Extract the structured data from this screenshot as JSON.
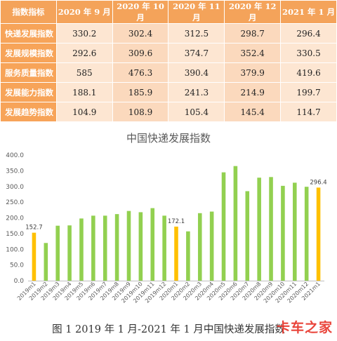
{
  "table": {
    "header": [
      "指数指标",
      "2020 年 9 月",
      "2020 年 10 月",
      "2020 年 11 月",
      "2020 年 12 月",
      "2021 年 1 月"
    ],
    "rows": [
      {
        "label": "快递发展指数",
        "values": [
          "330.2",
          "302.4",
          "312.5",
          "298.7",
          "296.4"
        ]
      },
      {
        "label": "发展规模指数",
        "values": [
          "292.6",
          "309.6",
          "374.7",
          "352.4",
          "330.5"
        ]
      },
      {
        "label": "服务质量指数",
        "values": [
          "585",
          "476.3",
          "390.4",
          "379.9",
          "419.6"
        ]
      },
      {
        "label": "发展能力指数",
        "values": [
          "188.1",
          "185.9",
          "241.3",
          "214.9",
          "199.7"
        ]
      },
      {
        "label": "发展趋势指数",
        "values": [
          "104.9",
          "108.9",
          "105.4",
          "145.4",
          "114.7"
        ]
      }
    ]
  },
  "chart_data": {
    "type": "bar",
    "title": "中国快递发展指数",
    "categories": [
      "2019m1",
      "2019m2",
      "2019m3",
      "2019m4",
      "2019m5",
      "2019m6",
      "2019m7",
      "2019m8",
      "2019m9",
      "2019m10",
      "2019m11",
      "2019m12",
      "2020m1",
      "2020m2",
      "2020m3",
      "2020m4",
      "2020m5",
      "2020m6",
      "2020m7",
      "2020m8",
      "2020m9",
      "2020m10",
      "2020m11",
      "2020m12",
      "2021m1"
    ],
    "values": [
      152.7,
      120,
      175,
      176,
      198,
      207,
      207,
      212,
      222,
      218,
      231,
      207,
      172.1,
      157,
      215,
      220,
      345,
      365,
      285,
      328,
      330,
      302,
      312,
      299,
      296.4
    ],
    "highlight_indices": [
      0,
      12,
      24
    ],
    "data_labels": {
      "0": "152.7",
      "12": "172.1",
      "24": "296.4"
    },
    "ylim": [
      0,
      400
    ],
    "yticks": [
      "0.0",
      "50.0",
      "100.0",
      "150.0",
      "200.0",
      "250.0",
      "300.0",
      "350.0",
      "400.0"
    ],
    "grid": false,
    "colors": {
      "normal": "#92d050",
      "highlight": "#ffc000",
      "axis": "#bfbfbf",
      "tick_text": "#595959",
      "title": "#595959"
    }
  },
  "caption": "图 1 2019 年 1 月-2021 年 1 月中国快递发展指数",
  "watermark": "卡车之家"
}
